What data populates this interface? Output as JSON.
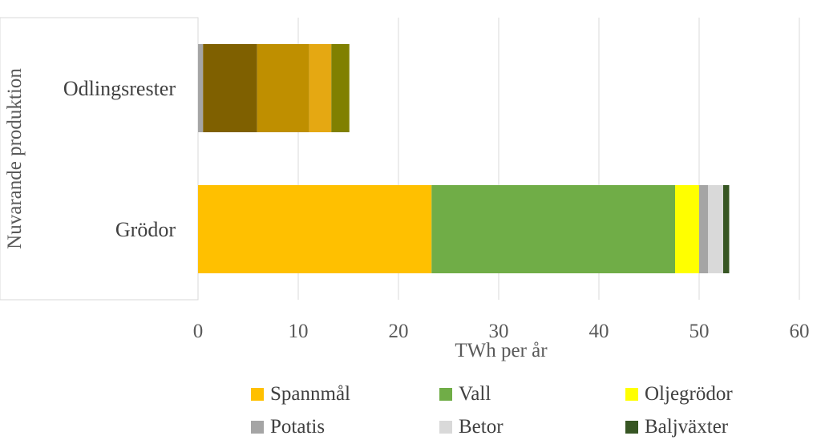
{
  "chart_data": {
    "type": "bar",
    "orientation": "horizontal",
    "stacked": true,
    "categories": [
      "Odlingsrester",
      "Grödor"
    ],
    "series": [
      {
        "name": "Spannmål",
        "color": "#FFC000",
        "values": [
          0,
          23.3
        ]
      },
      {
        "name": "Vall",
        "color": "#70AD47",
        "values": [
          0,
          24.3
        ]
      },
      {
        "name": "Oljegrödor",
        "color": "#FFFF00",
        "values": [
          0,
          2.4
        ]
      },
      {
        "name": "Potatis",
        "color": "#A5A5A5",
        "values": [
          0.5,
          0.9
        ]
      },
      {
        "name": "Betor",
        "color": "#D9D9D9",
        "values": [
          0,
          1.5
        ]
      },
      {
        "name": "Baljväxter",
        "color": "#375623",
        "values": [
          0,
          0.6
        ]
      },
      {
        "name": "",
        "color": "#7F6000",
        "values": [
          5.4,
          0
        ]
      },
      {
        "name": "",
        "color": "#BF8F00",
        "values": [
          5.2,
          0
        ]
      },
      {
        "name": "",
        "color": "#E5A812",
        "values": [
          2.2,
          0
        ]
      },
      {
        "name": "",
        "color": "#808000",
        "values": [
          1.8,
          0
        ]
      }
    ],
    "xlabel": "TWh per år",
    "ylabel": "Nuvarande produktion",
    "xlim": [
      0,
      60
    ],
    "xticks": [
      0,
      10,
      20,
      30,
      40,
      50,
      60
    ],
    "grid": true,
    "legend": "bottom",
    "legend_entries": [
      "Spannmål",
      "Vall",
      "Oljegrödor",
      "Potatis",
      "Betor",
      "Baljväxter"
    ]
  }
}
